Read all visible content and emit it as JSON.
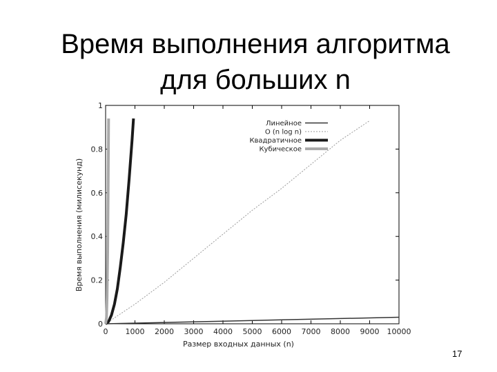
{
  "slide": {
    "title_line1": "Время выполнения алгоритма",
    "title_line2": "для больших n",
    "page_number": "17"
  },
  "chart_data": {
    "type": "line",
    "xlabel": "Размер входных данных (n)",
    "ylabel": "Время выполнения (милисекунд)",
    "xlim": [
      0,
      10000
    ],
    "ylim": [
      0,
      1
    ],
    "x_ticks": [
      "0",
      "1000",
      "2000",
      "3000",
      "4000",
      "5000",
      "6000",
      "7000",
      "8000",
      "9000",
      "10000"
    ],
    "y_ticks": [
      "0",
      "0.2",
      "0.4",
      "0.6",
      "0.8",
      "1"
    ],
    "legend_position": "top-right",
    "series": [
      {
        "name": "Линейное",
        "color": "#333333",
        "style": "solid-thin",
        "x": [
          0,
          2000,
          4000,
          6000,
          8000,
          10000
        ],
        "y": [
          0,
          0.006,
          0.012,
          0.018,
          0.024,
          0.03
        ]
      },
      {
        "name": "O (n log n)",
        "color": "#999999",
        "style": "dotted",
        "x": [
          0,
          1000,
          2000,
          3000,
          4000,
          5000,
          6000,
          7000,
          8000,
          9000
        ],
        "y": [
          0,
          0.09,
          0.19,
          0.3,
          0.41,
          0.52,
          0.62,
          0.73,
          0.84,
          0.93
        ]
      },
      {
        "name": "Квадратичное",
        "color": "#1a1a1a",
        "style": "solid-thick",
        "x": [
          0,
          100,
          200,
          300,
          400,
          500,
          600,
          700,
          800,
          900,
          950
        ],
        "y": [
          0,
          0.01,
          0.04,
          0.09,
          0.16,
          0.26,
          0.37,
          0.5,
          0.66,
          0.84,
          0.94
        ]
      },
      {
        "name": "Кубическое",
        "color": "#aaaaaa",
        "style": "solid-thick",
        "x": [
          0,
          30,
          50,
          70,
          85,
          98,
          100
        ],
        "y": [
          0,
          0.03,
          0.12,
          0.33,
          0.58,
          0.88,
          0.94
        ]
      }
    ]
  }
}
